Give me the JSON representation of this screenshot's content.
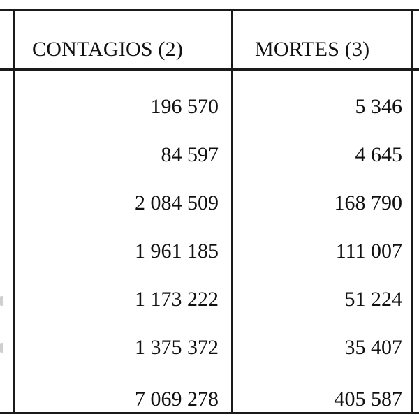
{
  "table": {
    "headers": {
      "contagios": "CONTAGIOS (2)",
      "mortes": "MORTES (3)"
    },
    "rows": [
      {
        "contagios": "196 570",
        "mortes": "5 346"
      },
      {
        "contagios": "84 597",
        "mortes": "4 645"
      },
      {
        "contagios": "2 084 509",
        "mortes": "168 790"
      },
      {
        "contagios": "1 961 185",
        "mortes": "111 007"
      },
      {
        "contagios": "1 173 222",
        "mortes": "51 224"
      },
      {
        "contagios": "1 375 372",
        "mortes": "35 407"
      },
      {
        "contagios": "7 069 278",
        "mortes": "405 587"
      }
    ]
  }
}
